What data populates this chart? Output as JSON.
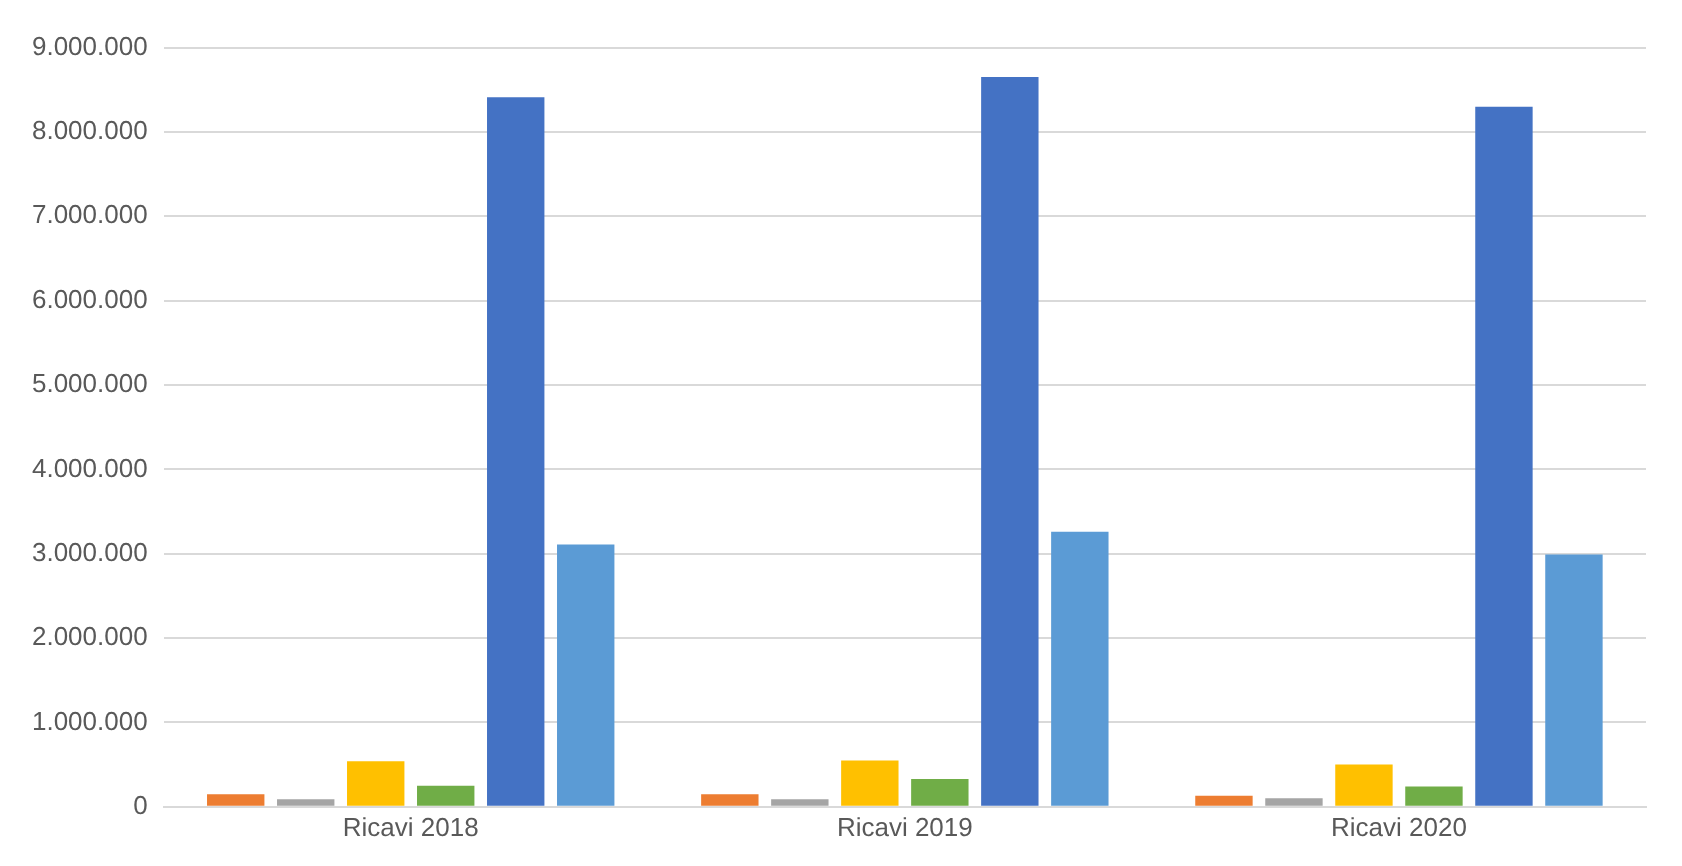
{
  "chart_data": {
    "type": "bar",
    "categories": [
      "Ricavi 2018",
      "Ricavi 2019",
      "Ricavi 2020"
    ],
    "series": [
      {
        "color": "#ed7d31",
        "values": [
          150000,
          150000,
          130000
        ]
      },
      {
        "color": "#a5a5a5",
        "values": [
          90000,
          90000,
          100000
        ]
      },
      {
        "color": "#ffc000",
        "values": [
          540000,
          550000,
          500000
        ]
      },
      {
        "color": "#70ad47",
        "values": [
          250000,
          330000,
          240000
        ]
      },
      {
        "color": "#4472c4",
        "values": [
          8410000,
          8650000,
          8300000
        ]
      },
      {
        "color": "#5b9bd5",
        "values": [
          3110000,
          3260000,
          2990000
        ]
      }
    ],
    "ylim": [
      0,
      9000000
    ],
    "yticks": [
      0,
      {
        "value": 1000000,
        "label": "1.000.000"
      },
      {
        "value": 2000000,
        "label": "2.000.000"
      },
      {
        "value": 3000000,
        "label": "3.000.000"
      },
      {
        "value": 4000000,
        "label": "4.000.000"
      },
      {
        "value": 5000000,
        "label": "5.000.000"
      },
      {
        "value": 6000000,
        "label": "6.000.000"
      },
      {
        "value": 7000000,
        "label": "7.000.000"
      },
      {
        "value": 8000000,
        "label": "8.000.000"
      },
      {
        "value": 9000000,
        "label": "9.000.000"
      }
    ],
    "grid": "y",
    "legend": false
  }
}
